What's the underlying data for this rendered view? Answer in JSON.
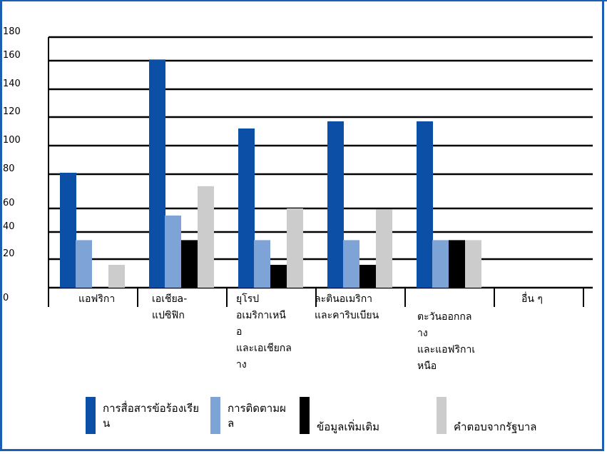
{
  "chart_data": {
    "type": "bar",
    "categories": [
      [
        "แอฟริกา"
      ],
      [
        "เอเชียa-",
        "แปซิฟิก"
      ],
      [
        "ยุโรป",
        "อเมริกาเหนื",
        "อ",
        "และเอเชียกล",
        "าง"
      ],
      [
        "ละตินอเมริกา",
        "และคาริบเบียน"
      ],
      [
        "",
        "ตะวันออกกล",
        "าง",
        "และแอฟริกาเ",
        "หนือ"
      ],
      [
        "อื่น ๆ"
      ]
    ],
    "series": [
      {
        "name": "การสื่อสารข้อร้องเรียน",
        "legend_lines": [
          "การสื่อสารข้อร้องเรีย",
          "น"
        ],
        "color": "#0b4fa6",
        "values": [
          81,
          161,
          112,
          117,
          117,
          0
        ]
      },
      {
        "name": "การติดตามผล",
        "legend_lines": [
          "การติดตามผ",
          "ล"
        ],
        "color": "#7ea3d6",
        "values": [
          34,
          54,
          34,
          34,
          34,
          0
        ]
      },
      {
        "name": "ข้อมูลเพิ่มเติม",
        "legend_lines": [
          "ข้อมูลเพิ่มเติม"
        ],
        "color": "#000000",
        "values": [
          0,
          34,
          16,
          16,
          34,
          0
        ]
      },
      {
        "name": "คำตอบจากรัฐบาล",
        "legend_lines": [
          "คำตอบจากรัฐบาล"
        ],
        "color": "#cccccc",
        "values": [
          16,
          73,
          60,
          59,
          34,
          0
        ]
      }
    ],
    "y_ticks": [
      "0",
      "20",
      "40",
      "60",
      "80",
      "100",
      "120",
      "140",
      "160",
      "180"
    ],
    "ylim": [
      0,
      180
    ],
    "grid": true,
    "legend_position": "bottom"
  }
}
